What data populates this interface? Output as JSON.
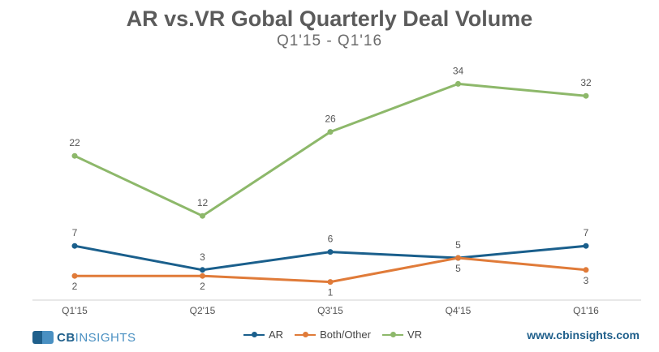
{
  "chart_data": {
    "type": "line",
    "title": "AR vs.VR Gobal Quarterly Deal Volume",
    "subtitle": "Q1'15 - Q1'16",
    "categories": [
      "Q1'15",
      "Q2'15",
      "Q3'15",
      "Q4'15",
      "Q1'16"
    ],
    "ylim": [
      0,
      40
    ],
    "grid": false,
    "legend": "bottom-center",
    "series": [
      {
        "name": "AR",
        "color": "#1a5f8c",
        "values": [
          7,
          3,
          6,
          5,
          7
        ],
        "label_pos": "above"
      },
      {
        "name": "Both/Other",
        "color": "#e07b39",
        "values": [
          2,
          2,
          1,
          5,
          3
        ],
        "label_pos": "below"
      },
      {
        "name": "VR",
        "color": "#8db86a",
        "values": [
          22,
          12,
          26,
          34,
          32
        ],
        "label_pos": "above"
      }
    ]
  },
  "footer": {
    "logo_main": "CB",
    "logo_sub": "INSIGHTS",
    "url": "www.cbinsights.com"
  }
}
